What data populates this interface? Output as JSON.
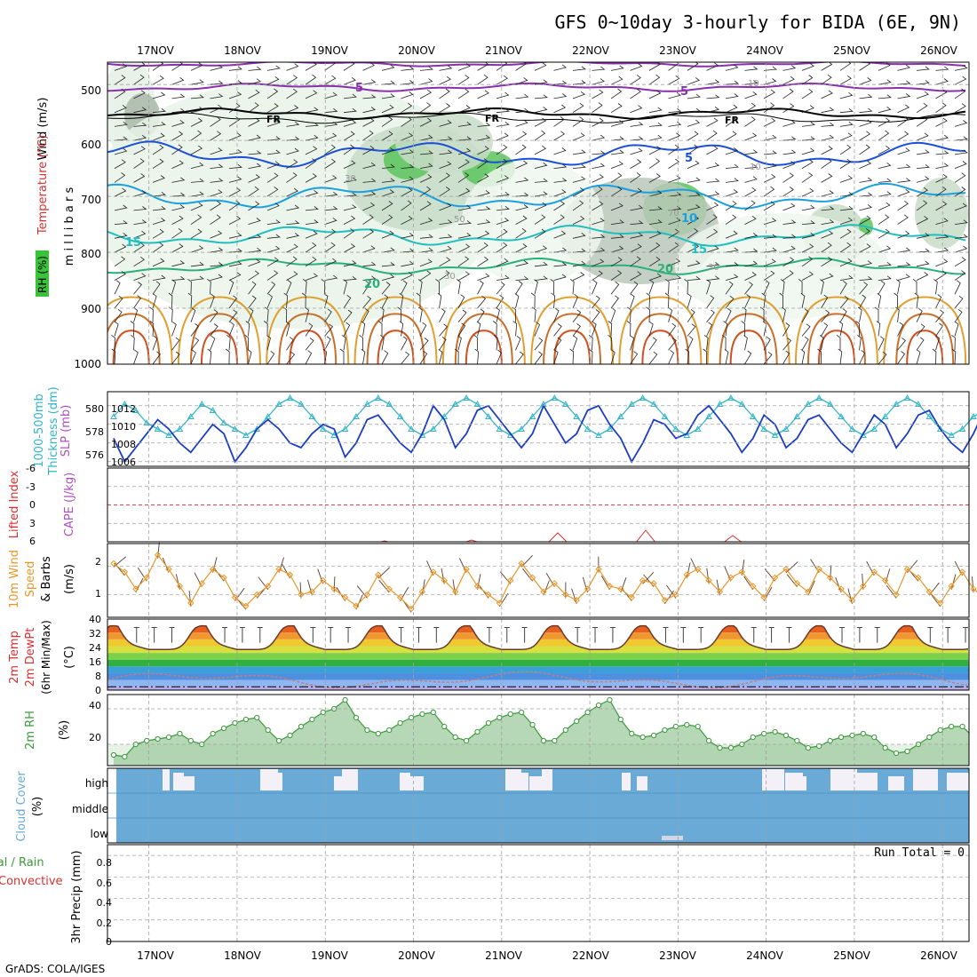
{
  "header": {
    "title": "GFS 0~10day 3-hourly for BIDA (6E, 9N)",
    "credit": "GrADS: COLA/IGES"
  },
  "colors": {
    "grid": "#a0a0a0",
    "slp": "#1a3dc4",
    "thickness": "#33b5c8",
    "wind10": "#e8972a",
    "rh": "#3a9a3a",
    "cloud": "#6aaad6",
    "lifted": "#d83030",
    "cape": "#b050c0",
    "dewpt": "#c08080"
  },
  "chart_data": {
    "type": "meteogram",
    "x": {
      "days": [
        "17NOV",
        "18NOV",
        "19NOV",
        "20NOV",
        "21NOV",
        "22NOV",
        "23NOV",
        "24NOV",
        "25NOV",
        "26NOV"
      ],
      "range_days": [
        16.53,
        26.3
      ],
      "step_hours": 3
    },
    "panels": [
      {
        "id": "profile",
        "ylabel_parts": {
          "wind": "Wind (m/s)",
          "temp": "Temperature (°C)",
          "rh": "RH (%)",
          "mb": "m i l l i b a r s"
        },
        "y_ticks": [
          "500",
          "600",
          "700",
          "800",
          "900",
          "1000"
        ],
        "ylim": [
          460,
          1000
        ],
        "isotherm_labels": {
          "t5a": "5",
          "t5b": "5",
          "fr1": "FR",
          "fr2": "FR",
          "fr3": "FR",
          "t5c": "5",
          "t10": "10",
          "t15a": "15",
          "t15b": "15",
          "t20a": "20",
          "t20b": "20",
          "rh10a": "10",
          "rh10b": "10",
          "rh30a": "30",
          "rh30b": "30",
          "rh30c": "30",
          "rh50": "50",
          "rh70": "70"
        }
      },
      {
        "id": "slp_thick",
        "ylabel_left": "1000-500mb",
        "ylabel_left2": "Thickness (dm)",
        "ylabel_right": "SLP (mb)",
        "left_ticks": [
          "580",
          "578",
          "576"
        ],
        "right_ticks": [
          "1012",
          "1010",
          "1008",
          "1006"
        ],
        "slp_range": [
          1005.5,
          1013.5
        ],
        "slp": [
          1008.5,
          1006,
          1007.5,
          1009,
          1010.5,
          1009.5,
          1008,
          1007,
          1008.5,
          1010,
          1009,
          1006,
          1007.5,
          1009.5,
          1010.5,
          1009.5,
          1008,
          1007.5,
          1009,
          1010,
          1009.5,
          1006.5,
          1008,
          1010.5,
          1011,
          1009.5,
          1008,
          1007,
          1009,
          1012,
          1010.5,
          1007.5,
          1009,
          1011.5,
          1012,
          1010.5,
          1009,
          1007.5,
          1009,
          1012,
          1010,
          1008,
          1009,
          1011.5,
          1012,
          1010,
          1008.5,
          1006,
          1008,
          1010.5,
          1010,
          1008.5,
          1009,
          1011,
          1012,
          1010.5,
          1009,
          1007,
          1008.5,
          1011,
          1010,
          1007.5,
          1008.5,
          1010.5,
          1011,
          1009.5,
          1008,
          1007,
          1009,
          1011,
          1010,
          1007.5,
          1009,
          1011,
          1011.5,
          1009.5,
          1008,
          1007,
          1009,
          1011.5,
          1010.5,
          1008,
          1009,
          1012.5,
          1013,
          1011.5,
          1010,
          1007.5,
          1009.5,
          1012.5
        ],
        "thick_range": [
          575.5,
          581.5
        ],
        "thickness": [
          579.5,
          580.5,
          580,
          579,
          578.5,
          578,
          578.5,
          579.5,
          580.5,
          580,
          579,
          578.5,
          578,
          578.5,
          579.5,
          580.5,
          581,
          580.5,
          579.5,
          578.5,
          578,
          578.5,
          579.5,
          580.5,
          581,
          580.5,
          579.5,
          578.5,
          578,
          578.5,
          579.5,
          580.5,
          581,
          580.5,
          579.5,
          578.5,
          578,
          578.5,
          579.5,
          580.5,
          581,
          580.5,
          579.5,
          578.5,
          578,
          578.5,
          579.5,
          580.5,
          581,
          580.5,
          579.5,
          578.5,
          578,
          578.5,
          579.5,
          580.5,
          581,
          580.5,
          579.5,
          578.5,
          578,
          578.5,
          579.5,
          580.5,
          581,
          580.5,
          579.5,
          578.5,
          578,
          578.5,
          579.5,
          580.5,
          581,
          580.5,
          579.5,
          578.5,
          578,
          578.5,
          579.5,
          580,
          580.5,
          580,
          578.5,
          577.5,
          577,
          577.5,
          578.5,
          579,
          578,
          576.5
        ]
      },
      {
        "id": "li_cape",
        "ylabel_left": "Lifted Index",
        "ylabel_right": "CAPE (J/kg)",
        "y_ticks": [
          "-6",
          "-3",
          "0",
          "3",
          "6"
        ],
        "ylim": [
          -6,
          6
        ]
      },
      {
        "id": "wind10",
        "ylabel_l1": "10m Wind",
        "ylabel_l2": "Speed",
        "ylabel_l3": "& Barbs",
        "ylabel_unit": "(m/s)",
        "y_ticks": [
          "2",
          "1"
        ],
        "ylim": [
          0.2,
          2.8
        ],
        "speed": [
          2.1,
          1.8,
          1.2,
          1.6,
          2.4,
          1.9,
          1.3,
          0.7,
          1.4,
          1.9,
          1.6,
          0.9,
          0.6,
          1.0,
          1.3,
          1.9,
          1.7,
          1.0,
          1.1,
          1.5,
          1.2,
          0.9,
          0.6,
          1.0,
          1.7,
          1.2,
          0.9,
          0.5,
          1.1,
          1.8,
          1.5,
          1.1,
          1.9,
          1.3,
          1.0,
          0.7,
          1.5,
          2.1,
          1.6,
          1.1,
          1.4,
          1.0,
          0.8,
          1.2,
          1.9,
          1.3,
          1.2,
          0.9,
          1.5,
          1.4,
          0.8,
          1.0,
          1.7,
          1.9,
          1.5,
          1.1,
          1.6,
          1.8,
          1.3,
          0.9,
          1.6,
          1.9,
          1.4,
          1.1,
          1.9,
          1.6,
          1.2,
          0.8,
          1.3,
          1.8,
          1.5,
          1.0,
          1.9,
          1.6,
          1.1,
          0.7,
          1.3,
          1.8,
          1.2,
          0.9,
          1.7,
          1.9,
          1.6,
          1.3,
          1.6,
          1.2,
          0.6,
          1.1,
          1.7,
          1.5
        ]
      },
      {
        "id": "temp2m",
        "ylabel_l1": "2m Temp",
        "ylabel_l2": "2m DewPt",
        "ylabel_l3": "(6hr Min/Max)",
        "ylabel_unit": "(°C)",
        "y_ticks": [
          "40",
          "32",
          "24",
          "16",
          "8",
          "0"
        ],
        "ylim": [
          -2,
          40
        ],
        "temp_min": 22,
        "temp_max": 35.5,
        "dewpoint": 4
      },
      {
        "id": "rh2m",
        "ylabel_l1": "2m RH",
        "ylabel_unit": "(%)",
        "y_ticks": [
          "40",
          "20"
        ],
        "ylim": [
          8,
          48
        ],
        "rh": [
          14,
          13,
          20,
          22,
          23,
          24,
          26,
          22,
          20,
          26,
          29,
          32,
          34,
          35,
          28,
          22,
          25,
          30,
          34,
          38,
          40,
          45,
          35,
          28,
          26,
          28,
          32,
          35,
          37,
          38,
          30,
          24,
          22,
          27,
          32,
          35,
          37,
          38,
          31,
          22,
          22,
          28,
          33,
          38,
          42,
          45,
          34,
          26,
          24,
          25,
          28,
          30,
          31,
          30,
          22,
          18,
          18,
          20,
          24,
          26,
          27,
          25,
          22,
          18,
          19,
          22,
          24,
          25,
          26,
          24,
          18,
          15,
          16,
          20,
          24,
          28,
          30,
          30,
          24,
          18,
          18,
          22,
          26,
          28,
          29,
          31,
          33,
          35,
          36,
          35
        ]
      },
      {
        "id": "cloud",
        "ylabel_l1": "Cloud Cover",
        "ylabel_unit": "(%)",
        "layer_labels": [
          "high",
          "middle",
          "low"
        ]
      },
      {
        "id": "precip",
        "ylabel_l1": "Total / Rain",
        "ylabel_l2": "Convective",
        "ylabel_unit": "3hr Precip (mm)",
        "y_ticks": [
          "0.8",
          "0.6",
          "0.4",
          "0.2",
          "0"
        ],
        "ylim": [
          0,
          0.9
        ],
        "run_total": "Run Total = 0"
      }
    ]
  }
}
